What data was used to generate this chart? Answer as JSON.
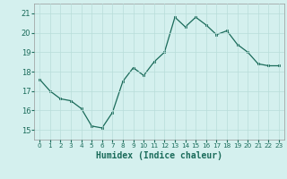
{
  "x": [
    0,
    1,
    2,
    3,
    4,
    5,
    6,
    7,
    8,
    9,
    10,
    11,
    12,
    13,
    14,
    15,
    16,
    17,
    18,
    19,
    20,
    21,
    22,
    23
  ],
  "y": [
    17.6,
    17.0,
    16.6,
    16.5,
    16.1,
    15.2,
    15.1,
    15.9,
    17.5,
    18.2,
    17.8,
    18.5,
    19.0,
    20.8,
    20.3,
    20.8,
    20.4,
    19.9,
    20.1,
    19.4,
    19.0,
    18.4,
    18.3,
    18.3
  ],
  "xlabel": "Humidex (Indice chaleur)",
  "ylim": [
    14.5,
    21.5
  ],
  "xlim": [
    -0.5,
    23.5
  ],
  "yticks": [
    15,
    16,
    17,
    18,
    19,
    20,
    21
  ],
  "xtick_labels": [
    "0",
    "1",
    "2",
    "3",
    "4",
    "5",
    "6",
    "7",
    "8",
    "9",
    "10",
    "11",
    "12",
    "13",
    "14",
    "15",
    "16",
    "17",
    "18",
    "19",
    "20",
    "21",
    "22",
    "23"
  ],
  "line_color": "#1a6b5a",
  "marker_color": "#1a6b5a",
  "bg_color": "#d4f0ee",
  "grid_color": "#b8ddd9",
  "xlabel_color": "#1a6b5a"
}
